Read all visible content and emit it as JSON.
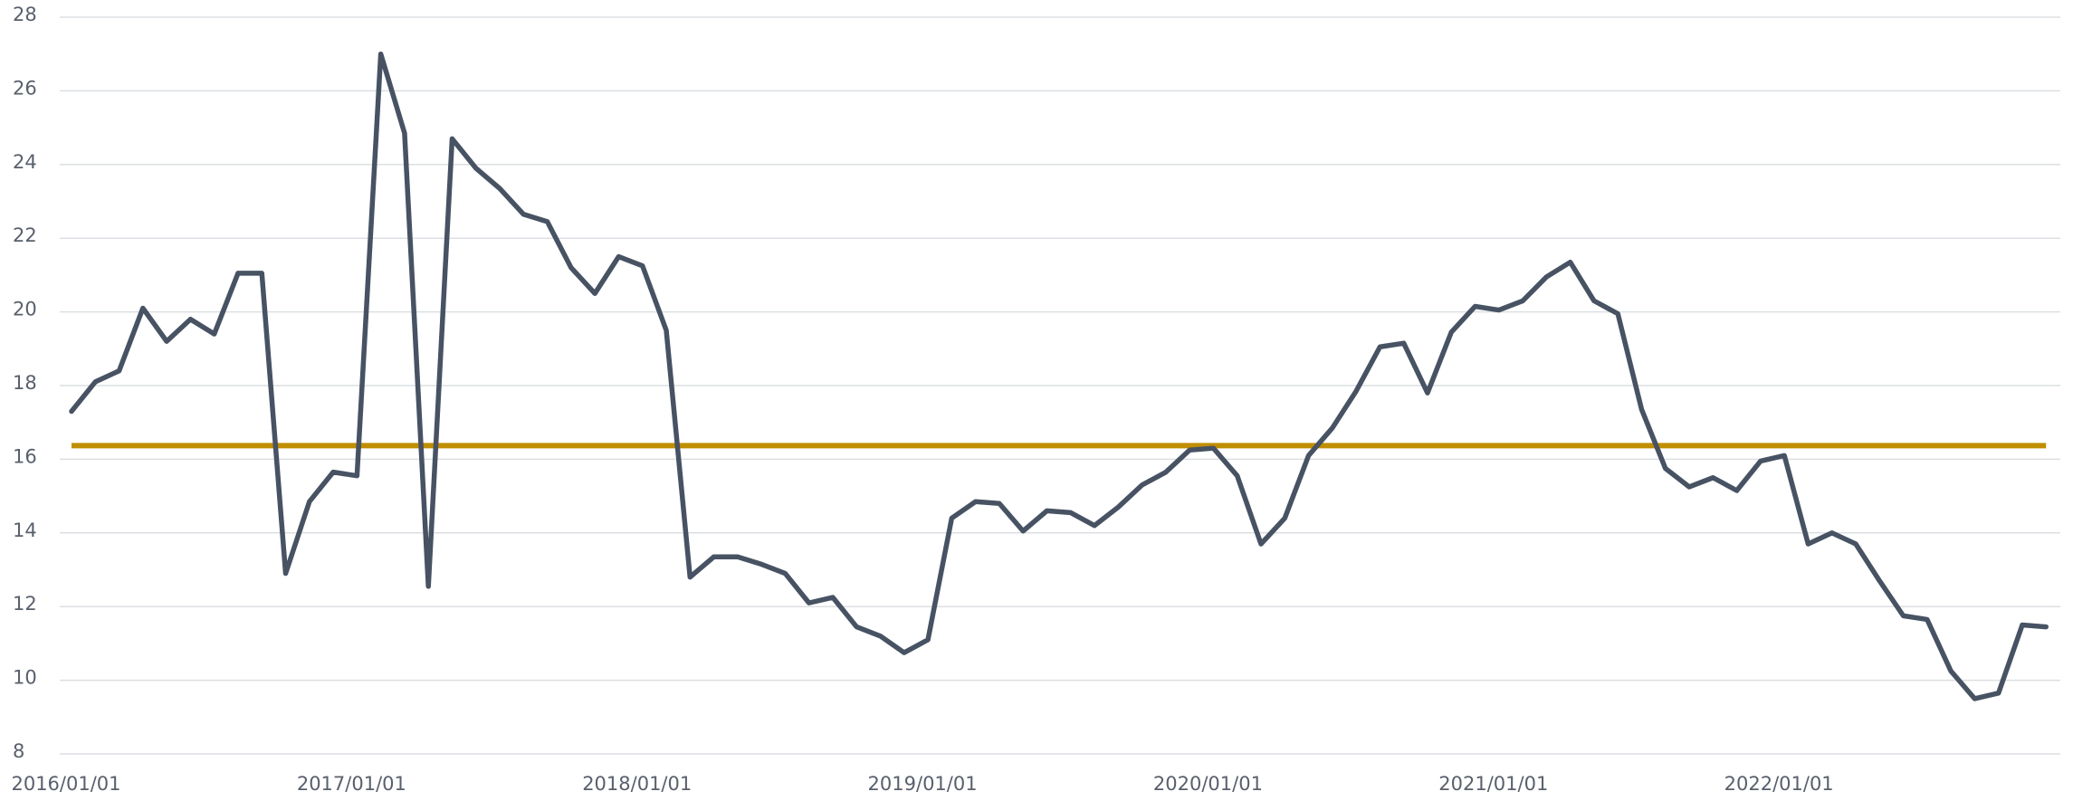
{
  "chart_data": {
    "type": "line",
    "x": [
      "2016/01/01",
      "2016/02/01",
      "2016/03/01",
      "2016/04/01",
      "2016/05/01",
      "2016/06/01",
      "2016/07/01",
      "2016/08/01",
      "2016/09/01",
      "2016/10/01",
      "2016/11/01",
      "2016/12/01",
      "2017/01/01",
      "2017/02/01",
      "2017/03/01",
      "2017/04/01",
      "2017/05/01",
      "2017/06/01",
      "2017/07/01",
      "2017/08/01",
      "2017/09/01",
      "2017/10/01",
      "2017/11/01",
      "2017/12/01",
      "2018/01/01",
      "2018/02/01",
      "2018/03/01",
      "2018/04/01",
      "2018/05/01",
      "2018/06/01",
      "2018/07/01",
      "2018/08/01",
      "2018/09/01",
      "2018/10/01",
      "2018/11/01",
      "2018/12/01",
      "2019/01/01",
      "2019/02/01",
      "2019/03/01",
      "2019/04/01",
      "2019/05/01",
      "2019/06/01",
      "2019/07/01",
      "2019/08/01",
      "2019/09/01",
      "2019/10/01",
      "2019/11/01",
      "2019/12/01",
      "2020/01/01",
      "2020/02/01",
      "2020/03/01",
      "2020/04/01",
      "2020/05/01",
      "2020/06/01",
      "2020/07/01",
      "2020/08/01",
      "2020/09/01",
      "2020/10/01",
      "2020/11/01",
      "2020/12/01",
      "2021/01/01",
      "2021/02/01",
      "2021/03/01",
      "2021/04/01",
      "2021/05/01",
      "2021/06/01",
      "2021/07/01",
      "2021/08/01",
      "2021/09/01",
      "2021/10/01",
      "2021/11/01",
      "2021/12/01",
      "2022/01/01",
      "2022/02/01",
      "2022/03/01",
      "2022/04/01",
      "2022/05/01",
      "2022/06/01",
      "2022/07/01",
      "2022/08/01",
      "2022/09/01",
      "2022/10/01",
      "2022/11/01",
      "2022/12/01"
    ],
    "series": [
      {
        "color": "#475263",
        "values": [
          17.3,
          18.1,
          18.4,
          20.1,
          19.2,
          19.8,
          19.4,
          21.05,
          21.05,
          12.9,
          14.85,
          15.65,
          15.55,
          27.0,
          24.85,
          12.55,
          24.7,
          23.9,
          23.35,
          22.65,
          22.45,
          21.2,
          20.5,
          21.5,
          21.25,
          19.5,
          12.8,
          13.35,
          13.35,
          13.15,
          12.9,
          12.1,
          12.25,
          11.45,
          11.2,
          10.75,
          11.1,
          14.4,
          14.85,
          14.8,
          14.05,
          14.6,
          14.55,
          14.2,
          14.7,
          15.3,
          15.65,
          16.25,
          16.3,
          15.55,
          13.7,
          14.4,
          16.1,
          16.85,
          17.85,
          19.05,
          19.15,
          17.8,
          19.45,
          20.15,
          20.05,
          20.3,
          20.95,
          21.35,
          20.3,
          19.95,
          17.35,
          15.75,
          15.25,
          15.5,
          15.15,
          15.95,
          16.1,
          13.7,
          14.0,
          13.7,
          12.7,
          11.75,
          11.65,
          10.25,
          9.5,
          9.65,
          11.5,
          11.45
        ]
      }
    ],
    "reference_line": {
      "value": 16.37,
      "color": "#c08f00"
    },
    "xticks": [
      "2016/01/01",
      "2017/01/01",
      "2018/01/01",
      "2019/01/01",
      "2020/01/01",
      "2021/01/01",
      "2022/01/01"
    ],
    "ylim": [
      8,
      28
    ],
    "yticks": [
      8,
      10,
      12,
      14,
      16,
      18,
      20,
      22,
      24,
      26,
      28
    ],
    "grid": true
  }
}
